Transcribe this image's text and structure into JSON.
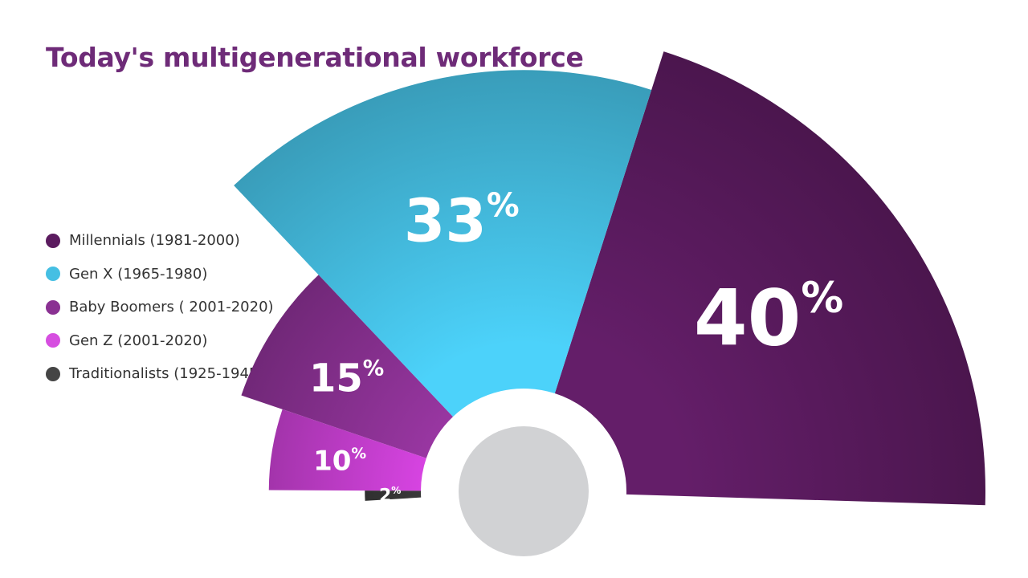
{
  "title": "Today's multigenerational workforce",
  "chart_data": {
    "type": "pie",
    "title": "Today's multigenerational workforce",
    "legend_position": "left",
    "unit": "%",
    "series": [
      {
        "name": "Millennials (1981-2000)",
        "value": 40,
        "label": "40",
        "color": "#5b1b5f"
      },
      {
        "name": "Gen X (1965-1980)",
        "value": 33,
        "label": "33",
        "color": "#45bfe3"
      },
      {
        "name": "Baby Boomers ( 2001-2020)",
        "value": 15,
        "label": "15",
        "color": "#8a3192"
      },
      {
        "name": "Gen Z (2001-2020)",
        "value": 10,
        "label": "10",
        "color": "#c73fd1"
      },
      {
        "name": "Traditionalists (1925-1945)",
        "value": 2,
        "label": "2",
        "color": "#3a3a3a"
      }
    ],
    "legend_dot_colors": [
      "#5b1b5f",
      "#45bfe3",
      "#8a3192",
      "#d64ee0",
      "#454545"
    ],
    "hub_color": "#d1d2d4"
  }
}
